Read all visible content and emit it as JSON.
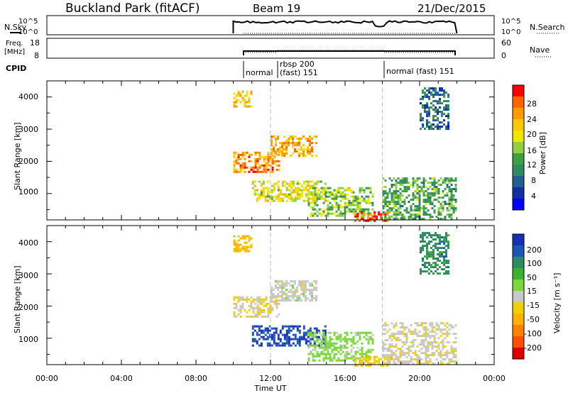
{
  "header": {
    "station": "Buckland Park (fitACF)",
    "beam": "Beam 19",
    "date": "21/Dec/2015"
  },
  "nsky_panel": {
    "label": "N.Sky",
    "left_ticks": [
      "10^5",
      "10^0"
    ],
    "right_ticks": [
      "10^5",
      "10^0"
    ],
    "right_label": "N.Search"
  },
  "freq_panel": {
    "label_line1": "Freq.",
    "label_line2": "[MHz]",
    "left_ticks": [
      "18",
      "8"
    ],
    "right_ticks": [
      "60",
      "0"
    ],
    "right_label": "Nave"
  },
  "cpid_panel": {
    "label": "CPID",
    "segments": [
      "normal",
      "rbsp 200",
      "(fast) 151",
      "normal (fast) 151"
    ]
  },
  "power_panel": {
    "ylabel": "Slant Range [km]",
    "yticks": [
      "4000",
      "3000",
      "2000",
      "1000"
    ],
    "colorbar_title": "Power [dB]",
    "colorbar_ticks": [
      "28",
      "24",
      "20",
      "16",
      "12",
      "8",
      "4"
    ],
    "colorbar_colors": [
      "#ff0000",
      "#ff6400",
      "#ff9a00",
      "#ffc800",
      "#f2e600",
      "#90d040",
      "#3ca040",
      "#2e8a60",
      "#206090",
      "#1030a0",
      "#0000ff"
    ]
  },
  "velocity_panel": {
    "ylabel": "Slant Range [km]",
    "yticks": [
      "4000",
      "3000",
      "2000",
      "1000"
    ],
    "colorbar_title": "Velocity [m s⁻¹]",
    "colorbar_ticks": [
      "200",
      "100",
      "50",
      "15",
      "-15",
      "-50",
      "-100",
      "-200"
    ],
    "colorbar_colors": [
      "#1430b4",
      "#1e56b4",
      "#2e8a60",
      "#3cb030",
      "#7ad83a",
      "#c8c8c8",
      "#f0d000",
      "#ffb000",
      "#ff8000",
      "#ff5000",
      "#e00000"
    ]
  },
  "x_axis": {
    "ticks": [
      "00:00",
      "04:00",
      "08:00",
      "12:00",
      "16:00",
      "20:00",
      "00:00"
    ],
    "label": "Time UT"
  },
  "chart_data": {
    "type": "heatmap",
    "x_range_hours": [
      0,
      24
    ],
    "y_range_km": [
      180,
      4500
    ],
    "data_start_hour": 10,
    "data_end_hour": 22,
    "power_regions": [
      {
        "t": [
          10.0,
          11.0
        ],
        "r": [
          3700,
          4200
        ],
        "dB": 20
      },
      {
        "t": [
          10.0,
          12.5
        ],
        "r": [
          1700,
          2300
        ],
        "dB": 24
      },
      {
        "t": [
          12.0,
          14.5
        ],
        "r": [
          2200,
          2800
        ],
        "dB": 22
      },
      {
        "t": [
          11.0,
          15.0
        ],
        "r": [
          750,
          1400
        ],
        "dB": 18
      },
      {
        "t": [
          14.0,
          17.5
        ],
        "r": [
          300,
          1200
        ],
        "dB": 14
      },
      {
        "t": [
          16.5,
          18.5
        ],
        "r": [
          180,
          450
        ],
        "dB": 28
      },
      {
        "t": [
          18.0,
          22.0
        ],
        "r": [
          180,
          1500
        ],
        "dB": 12
      },
      {
        "t": [
          20.0,
          21.5
        ],
        "r": [
          3000,
          4300
        ],
        "dB": 6
      }
    ],
    "velocity_regions": [
      {
        "t": [
          10.0,
          11.0
        ],
        "r": [
          3700,
          4200
        ],
        "v": -80
      },
      {
        "t": [
          10.0,
          12.5
        ],
        "r": [
          1700,
          2300
        ],
        "v": -20
      },
      {
        "t": [
          12.0,
          14.5
        ],
        "r": [
          2200,
          2800
        ],
        "v": 0
      },
      {
        "t": [
          11.0,
          15.0
        ],
        "r": [
          750,
          1400
        ],
        "v": 220
      },
      {
        "t": [
          14.0,
          17.5
        ],
        "r": [
          300,
          1200
        ],
        "v": 40
      },
      {
        "t": [
          16.5,
          18.5
        ],
        "r": [
          180,
          450
        ],
        "v": -60
      },
      {
        "t": [
          18.0,
          22.0
        ],
        "r": [
          180,
          1500
        ],
        "v": -10
      },
      {
        "t": [
          20.0,
          21.5
        ],
        "r": [
          3000,
          4300
        ],
        "v": 150
      }
    ]
  }
}
